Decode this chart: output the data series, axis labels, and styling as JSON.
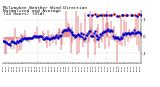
{
  "title_line1": "Milwaukee Weather Wind Direction",
  "title_line2": "Normalized and Average",
  "title_line3": "(24 Hours) (Old)",
  "title_fontsize": 3.2,
  "title_color": "#000000",
  "bg_color": "#ffffff",
  "plot_bg_color": "#ffffff",
  "grid_color": "#aaaaaa",
  "bar_color": "#cc0000",
  "dot_color": "#0000cc",
  "dot_color_red": "#cc0000",
  "ylim": [
    -1.55,
    1.55
  ],
  "xlim": [
    0,
    143
  ],
  "n_points": 144,
  "seed": 42,
  "yticks": [
    1,
    0,
    -1
  ],
  "ytick_labels": [
    "1",
    "0",
    "-1"
  ]
}
